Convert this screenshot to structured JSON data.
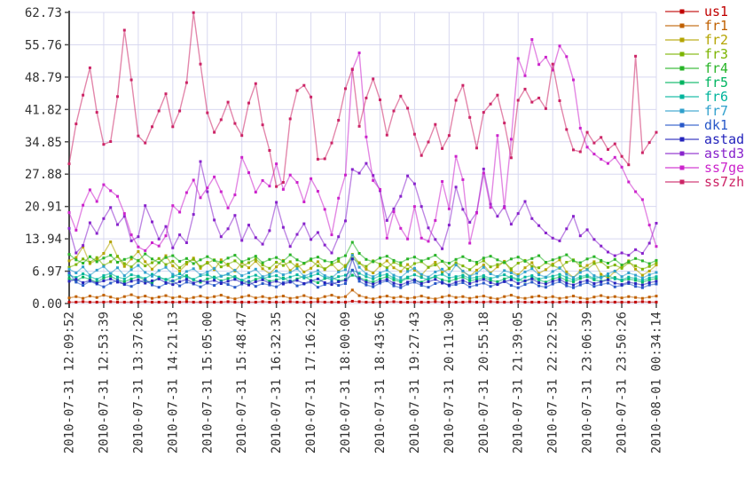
{
  "chart_data": {
    "type": "line",
    "title": "",
    "xlabel": "",
    "ylabel": "",
    "ylim": [
      0,
      62.73
    ],
    "grid": true,
    "grid_color": "#d8d8f0",
    "axis_color": "#4d4d4d",
    "tick_label_color": "#333333",
    "legend_position": "right-top",
    "y_tick_labels": [
      "62.73",
      "55.76",
      "48.79",
      "41.82",
      "34.85",
      "27.88",
      "20.91",
      "13.94",
      "6.97",
      "0.00"
    ],
    "x_tick_labels": [
      "2010-07-31 12:09:52",
      "2010-07-31 12:53:39",
      "2010-07-31 13:37:26",
      "2010-07-31 14:21:13",
      "2010-07-31 15:05:00",
      "2010-07-31 15:48:47",
      "2010-07-31 16:32:35",
      "2010-07-31 17:16:22",
      "2010-07-31 18:00:09",
      "2010-07-31 18:43:56",
      "2010-07-31 19:27:43",
      "2010-07-31 20:11:30",
      "2010-07-31 20:55:18",
      "2010-07-31 21:39:05",
      "2010-07-31 22:22:52",
      "2010-07-31 23:06:39",
      "2010-07-31 23:50:26",
      "2010-08-01 00:34:14"
    ],
    "series": [
      {
        "name": "us1",
        "color": "#c00000",
        "values": [
          0.3,
          0.3,
          0.4,
          0.3,
          0.3,
          0.3,
          0.4,
          0.3,
          0.3,
          0.3,
          0.3,
          0.4,
          0.3,
          0.3,
          0.3,
          0.3,
          0.3,
          0.4,
          0.3,
          0.3,
          0.3,
          0.3,
          0.3,
          0.4,
          0.3,
          0.3,
          0.3,
          0.3,
          0.4,
          0.3,
          0.3,
          0.3,
          0.4,
          0.3,
          0.3,
          0.3,
          0.4,
          0.3,
          0.3,
          0.3,
          0.3,
          0.5,
          0.4,
          0.3,
          0.3,
          0.3,
          0.3,
          0.4,
          0.3,
          0.3,
          0.3,
          0.3,
          0.3,
          0.4,
          0.3,
          0.3,
          0.3,
          0.3,
          0.4,
          0.3,
          0.3,
          0.4,
          0.3,
          0.3,
          0.3,
          0.4,
          0.3,
          0.3,
          0.3,
          0.3,
          0.3,
          0.3,
          0.4,
          0.3,
          0.3,
          0.3,
          0.3,
          0.4,
          0.3,
          0.3,
          0.3,
          0.3,
          0.3,
          0.4,
          0.3,
          0.3
        ]
      },
      {
        "name": "fr1",
        "color": "#c06000",
        "values": [
          1.2,
          1.5,
          1.1,
          1.6,
          1.3,
          1.8,
          1.4,
          1.0,
          1.5,
          1.9,
          1.3,
          1.6,
          1.1,
          1.4,
          1.7,
          1.2,
          1.5,
          1.0,
          1.3,
          1.6,
          1.2,
          1.5,
          1.8,
          1.3,
          1.0,
          1.4,
          1.7,
          1.2,
          1.5,
          1.1,
          1.4,
          1.6,
          1.1,
          1.3,
          1.7,
          1.2,
          1.0,
          1.5,
          1.8,
          1.3,
          1.5,
          2.9,
          1.7,
          1.3,
          1.0,
          1.4,
          1.6,
          1.2,
          1.5,
          1.1,
          1.3,
          1.6,
          1.2,
          1.0,
          1.4,
          1.7,
          1.3,
          1.5,
          1.1,
          1.4,
          1.6,
          1.2,
          1.0,
          1.5,
          1.8,
          1.3,
          1.1,
          1.4,
          1.6,
          1.2,
          1.5,
          1.1,
          1.3,
          1.6,
          1.2,
          1.0,
          1.4,
          1.7,
          1.3,
          1.5,
          1.2,
          1.5,
          1.3,
          1.1,
          1.4,
          1.6
        ]
      },
      {
        "name": "fr2",
        "color": "#b4a400",
        "values": [
          9.2,
          9.9,
          12.2,
          8.6,
          9.4,
          10.8,
          13.3,
          10.1,
          8.0,
          9.6,
          11.2,
          9.0,
          7.4,
          8.8,
          10.3,
          8.1,
          7.0,
          8.5,
          9.8,
          7.6,
          8.9,
          7.3,
          9.4,
          8.2,
          7.0,
          8.8,
          7.7,
          9.1,
          7.5,
          6.4,
          7.9,
          9.3,
          7.1,
          8.4,
          6.8,
          7.6,
          9.0,
          7.3,
          8.6,
          7.0,
          8.2,
          9.7,
          8.8,
          7.4,
          6.6,
          8.1,
          9.2,
          7.7,
          6.9,
          8.4,
          7.2,
          6.1,
          7.8,
          8.9,
          6.7,
          7.5,
          8.6,
          6.9,
          5.9,
          7.2,
          8.3,
          6.6,
          7.9,
          9.1,
          7.0,
          6.2,
          7.7,
          8.8,
          6.5,
          7.3,
          8.5,
          9.4,
          6.8,
          5.6,
          7.1,
          8.2,
          9.0,
          6.3,
          5.5,
          6.9,
          8.0,
          9.2,
          7.4,
          6.1,
          7.0,
          8.3
        ]
      },
      {
        "name": "fr3",
        "color": "#7cb400",
        "values": [
          7.8,
          8.4,
          9.6,
          8.9,
          9.9,
          8.2,
          9.0,
          10.2,
          8.6,
          7.9,
          9.3,
          8.1,
          8.8,
          9.7,
          8.4,
          9.1,
          7.7,
          8.9,
          9.5,
          8.0,
          8.7,
          9.4,
          7.9,
          8.5,
          9.2,
          8.0,
          8.8,
          9.6,
          8.3,
          7.6,
          8.9,
          8.2,
          9.0,
          7.8,
          8.6,
          9.3,
          8.1,
          7.5,
          8.4,
          9.1,
          7.9,
          10.6,
          8.7,
          8.0,
          9.2,
          8.5,
          7.7,
          8.9,
          8.2,
          7.4,
          8.6,
          9.0,
          7.8,
          8.3,
          9.1,
          7.6,
          8.8,
          8.1,
          7.3,
          8.5,
          9.2,
          7.9,
          8.4,
          8.9,
          7.5,
          8.7,
          9.3,
          8.0,
          7.7,
          8.8,
          8.2,
          7.6,
          8.9,
          9.4,
          8.1,
          7.4,
          8.6,
          9.0,
          7.8,
          8.3,
          7.6,
          8.8,
          8.1,
          7.4,
          8.0,
          8.7
        ]
      },
      {
        "name": "fr4",
        "color": "#28b428",
        "values": [
          10.6,
          9.4,
          8.7,
          10.1,
          9.0,
          9.8,
          10.4,
          8.9,
          9.5,
          10.0,
          9.2,
          10.7,
          9.6,
          8.8,
          9.9,
          10.3,
          9.1,
          9.7,
          8.6,
          9.4,
          10.1,
          9.3,
          8.9,
          9.8,
          10.4,
          9.0,
          9.6,
          10.2,
          8.8,
          9.5,
          9.9,
          9.1,
          10.5,
          9.4,
          8.7,
          9.6,
          10.0,
          9.2,
          8.9,
          9.7,
          10.3,
          13.2,
          10.8,
          9.5,
          9.0,
          9.8,
          10.2,
          9.3,
          8.8,
          9.6,
          10.0,
          9.2,
          9.7,
          10.4,
          9.1,
          8.7,
          9.5,
          10.1,
          9.3,
          8.9,
          9.8,
          10.2,
          9.4,
          8.8,
          9.6,
          10.0,
          9.1,
          9.7,
          10.3,
          8.9,
          9.4,
          9.9,
          10.5,
          9.2,
          8.8,
          9.6,
          10.1,
          9.3,
          8.7,
          9.5,
          8.3,
          9.0,
          9.7,
          9.2,
          8.6,
          9.3
        ]
      },
      {
        "name": "fr5",
        "color": "#00b460",
        "values": [
          5.4,
          4.9,
          5.7,
          5.2,
          4.6,
          5.5,
          5.9,
          5.1,
          4.7,
          5.3,
          5.8,
          5.0,
          4.5,
          5.6,
          5.2,
          4.8,
          5.5,
          6.0,
          5.1,
          4.6,
          5.3,
          5.7,
          4.9,
          5.4,
          5.8,
          5.0,
          4.6,
          5.2,
          5.6,
          4.8,
          5.1,
          5.5,
          4.7,
          5.3,
          5.9,
          5.0,
          4.5,
          5.4,
          5.7,
          4.9,
          5.2,
          6.1,
          5.6,
          5.0,
          4.6,
          5.3,
          5.8,
          5.1,
          4.7,
          5.5,
          5.0,
          4.6,
          5.4,
          5.8,
          5.1,
          4.8,
          5.3,
          5.7,
          4.9,
          5.2,
          5.6,
          5.0,
          4.7,
          5.3,
          5.8,
          5.2,
          4.8,
          5.5,
          5.1,
          4.6,
          5.3,
          5.7,
          5.0,
          4.7,
          5.4,
          5.8,
          5.1,
          4.8,
          5.2,
          5.6,
          4.9,
          5.3,
          5.0,
          4.6,
          5.1,
          5.4
        ]
      },
      {
        "name": "fr6",
        "color": "#00b49c",
        "values": [
          6.1,
          5.6,
          6.4,
          5.8,
          5.2,
          6.0,
          6.5,
          5.7,
          5.3,
          6.2,
          5.9,
          5.4,
          6.3,
          5.7,
          5.1,
          5.8,
          6.4,
          5.6,
          5.2,
          6.0,
          6.2,
          5.5,
          5.9,
          6.3,
          5.6,
          5.0,
          5.7,
          6.1,
          5.4,
          5.8,
          6.0,
          5.3,
          5.7,
          6.2,
          5.5,
          5.9,
          6.4,
          5.6,
          5.1,
          5.8,
          6.1,
          7.2,
          6.5,
          5.8,
          5.3,
          6.0,
          6.3,
          5.5,
          5.0,
          5.7,
          6.2,
          5.6,
          5.1,
          5.9,
          6.3,
          5.5,
          5.8,
          6.1,
          5.4,
          5.7,
          6.0,
          5.4,
          5.8,
          6.2,
          5.5,
          5.0,
          5.7,
          6.0,
          5.3,
          5.6,
          5.9,
          6.3,
          5.6,
          5.1,
          5.8,
          6.1,
          5.4,
          5.7,
          6.0,
          5.3,
          5.1,
          5.7,
          5.4,
          5.0,
          5.5,
          5.8
        ]
      },
      {
        "name": "fr7",
        "color": "#30a0cc",
        "values": [
          7.4,
          6.6,
          7.9,
          6.1,
          7.2,
          8.0,
          6.5,
          7.7,
          6.0,
          7.3,
          8.2,
          6.7,
          5.9,
          7.1,
          7.8,
          6.3,
          5.6,
          6.9,
          7.5,
          6.2,
          6.8,
          7.6,
          5.9,
          6.4,
          7.2,
          6.0,
          6.6,
          7.4,
          5.8,
          6.3,
          7.0,
          6.2,
          6.7,
          7.5,
          5.9,
          6.5,
          7.1,
          6.0,
          5.5,
          6.8,
          7.3,
          10.4,
          7.8,
          6.4,
          5.8,
          6.6,
          7.2,
          6.1,
          5.6,
          6.9,
          7.6,
          6.3,
          5.7,
          6.8,
          7.4,
          6.2,
          8.3,
          7.0,
          5.9,
          6.5,
          7.8,
          6.4,
          5.8,
          7.1,
          6.6,
          5.9,
          6.8,
          7.5,
          6.2,
          5.7,
          6.9,
          7.7,
          6.3,
          5.6,
          6.7,
          7.3,
          6.0,
          5.5,
          6.4,
          7.0,
          5.8,
          6.6,
          6.1,
          5.5,
          6.2,
          6.7
        ]
      },
      {
        "name": "dk1",
        "color": "#2858c8",
        "values": [
          6.6,
          4.6,
          3.9,
          4.8,
          4.2,
          3.6,
          4.4,
          5.0,
          4.1,
          3.7,
          4.5,
          5.1,
          4.0,
          3.5,
          4.3,
          4.9,
          3.8,
          4.6,
          4.2,
          3.6,
          4.4,
          3.9,
          4.7,
          4.1,
          3.5,
          4.2,
          4.8,
          3.7,
          4.3,
          4.0,
          3.6,
          4.5,
          4.9,
          3.8,
          4.2,
          4.6,
          3.5,
          4.1,
          4.7,
          3.9,
          4.3,
          7.2,
          4.8,
          4.0,
          3.6,
          4.4,
          4.9,
          3.8,
          3.4,
          4.2,
          4.6,
          3.9,
          3.5,
          4.3,
          4.7,
          3.8,
          4.1,
          4.5,
          3.6,
          4.0,
          4.4,
          3.7,
          4.2,
          4.8,
          3.9,
          3.4,
          4.1,
          4.6,
          3.8,
          3.5,
          4.2,
          4.7,
          3.8,
          3.4,
          4.0,
          4.5,
          3.7,
          4.1,
          4.4,
          3.6,
          3.9,
          4.3,
          3.7,
          3.4,
          4.0,
          4.2
        ]
      },
      {
        "name": "astad",
        "color": "#2424bc",
        "values": [
          4.8,
          5.2,
          4.5,
          5.0,
          4.4,
          4.9,
          5.3,
          4.6,
          4.2,
          4.8,
          5.1,
          4.4,
          4.9,
          5.3,
          4.5,
          4.1,
          4.7,
          5.2,
          4.4,
          4.9,
          4.6,
          5.0,
          4.3,
          4.8,
          5.2,
          4.5,
          4.0,
          4.7,
          5.1,
          4.4,
          4.8,
          4.2,
          4.6,
          5.0,
          4.3,
          4.9,
          5.3,
          4.5,
          4.1,
          4.7,
          5.0,
          9.6,
          5.4,
          4.6,
          4.2,
          4.8,
          5.2,
          4.4,
          4.0,
          4.6,
          5.1,
          4.3,
          4.7,
          5.2,
          4.4,
          4.0,
          4.6,
          5.0,
          4.3,
          4.8,
          5.2,
          4.5,
          4.1,
          4.7,
          5.1,
          4.3,
          4.9,
          5.3,
          4.5,
          4.2,
          4.8,
          5.2,
          4.4,
          4.0,
          4.6,
          5.0,
          4.3,
          4.7,
          5.1,
          4.4,
          4.1,
          4.6,
          4.3,
          4.0,
          4.5,
          4.8
        ]
      },
      {
        "name": "astd3",
        "color": "#8824cc",
        "values": [
          16.2,
          10.9,
          12.5,
          17.4,
          15.1,
          18.3,
          20.7,
          17.0,
          18.8,
          13.5,
          14.4,
          21.1,
          17.6,
          13.9,
          16.6,
          12.0,
          14.8,
          13.1,
          19.2,
          30.6,
          24.1,
          18.0,
          14.4,
          16.1,
          19.0,
          13.6,
          16.9,
          14.2,
          12.8,
          15.7,
          21.8,
          16.4,
          12.3,
          14.9,
          17.2,
          13.8,
          15.3,
          12.6,
          10.9,
          14.4,
          17.8,
          28.9,
          28.1,
          30.2,
          27.6,
          24.3,
          17.9,
          20.4,
          23.1,
          27.5,
          25.8,
          20.9,
          16.3,
          13.8,
          11.8,
          16.9,
          25.1,
          20.3,
          17.5,
          19.6,
          29.0,
          21.4,
          18.8,
          20.9,
          17.1,
          19.4,
          22.0,
          18.3,
          16.8,
          15.2,
          14.1,
          13.5,
          16.1,
          18.8,
          14.6,
          15.9,
          13.8,
          12.4,
          11.1,
          10.3,
          10.9,
          10.4,
          11.6,
          10.8,
          13.0,
          17.3
        ]
      },
      {
        "name": "ss7ge",
        "color": "#cc24cc",
        "values": [
          19.6,
          15.8,
          21.2,
          24.5,
          22.0,
          25.6,
          24.3,
          23.1,
          19.4,
          14.8,
          12.2,
          11.4,
          13.1,
          12.4,
          14.6,
          21.1,
          19.7,
          23.9,
          26.6,
          22.8,
          24.9,
          27.3,
          24.1,
          20.6,
          23.4,
          31.5,
          28.2,
          24.0,
          26.5,
          25.3,
          30.1,
          24.6,
          27.7,
          26.1,
          21.9,
          26.9,
          24.2,
          20.3,
          14.8,
          22.7,
          27.7,
          50.4,
          54.0,
          35.9,
          26.5,
          24.6,
          14.1,
          19.8,
          16.2,
          13.9,
          20.9,
          14.1,
          13.4,
          17.9,
          26.3,
          20.4,
          31.7,
          26.7,
          13.0,
          19.5,
          28.1,
          20.7,
          36.2,
          20.6,
          35.4,
          52.8,
          49.1,
          56.9,
          51.5,
          53.1,
          50.3,
          55.5,
          53.2,
          48.2,
          37.8,
          33.7,
          32.2,
          31.1,
          30.2,
          31.5,
          29.4,
          26.2,
          24.1,
          22.4,
          16.9,
          12.3
        ]
      },
      {
        "name": "ss7zh",
        "color": "#cc2466",
        "values": [
          30.1,
          38.7,
          44.9,
          50.8,
          41.2,
          34.3,
          34.9,
          44.6,
          58.9,
          48.2,
          36.1,
          34.6,
          38.1,
          41.5,
          45.2,
          38.1,
          41.5,
          47.6,
          62.7,
          51.6,
          41.1,
          36.9,
          39.6,
          43.4,
          38.8,
          36.2,
          43.2,
          47.4,
          38.5,
          33.0,
          25.2,
          26.1,
          39.8,
          45.9,
          47.0,
          44.5,
          31.1,
          31.2,
          34.6,
          39.5,
          46.3,
          50.5,
          38.2,
          44.3,
          48.4,
          43.9,
          36.3,
          41.5,
          44.7,
          42.1,
          36.5,
          31.9,
          34.8,
          38.6,
          33.4,
          36.2,
          43.8,
          47.0,
          40.1,
          33.5,
          41.2,
          43.0,
          44.9,
          38.9,
          31.4,
          43.8,
          46.2,
          43.4,
          44.3,
          42.0,
          51.6,
          43.7,
          37.5,
          33.1,
          32.7,
          36.9,
          34.6,
          35.8,
          33.2,
          34.4,
          31.7,
          29.9,
          53.3,
          32.5,
          34.7,
          36.9
        ]
      }
    ]
  }
}
